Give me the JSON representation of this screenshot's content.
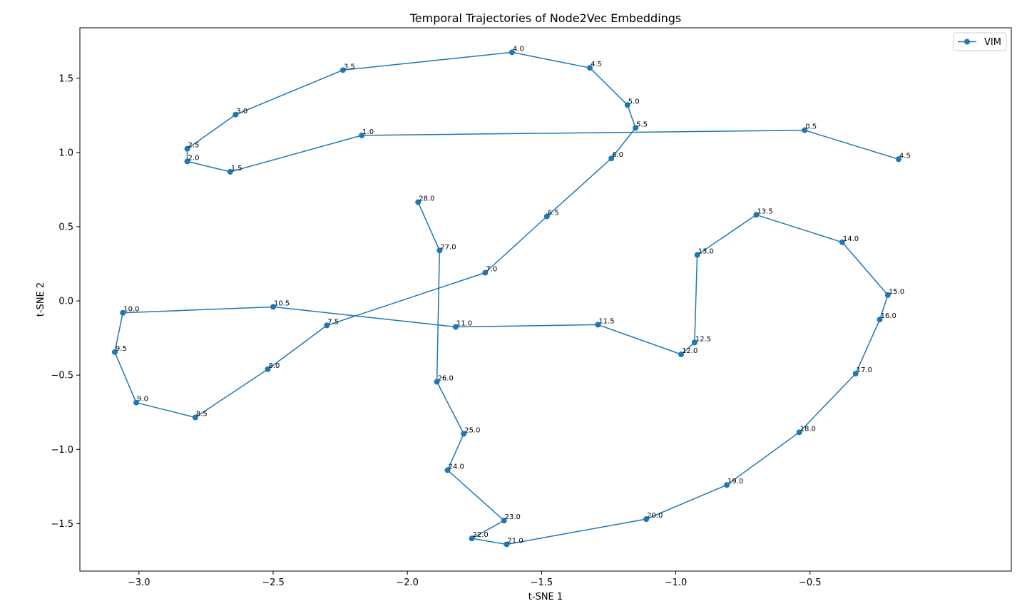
{
  "chart_data": {
    "type": "line",
    "title": "Temporal Trajectories of Node2Vec Embeddings",
    "xlabel": "t-SNE 1",
    "ylabel": "t-SNE 2",
    "xlim": [
      -3.22,
      0.25
    ],
    "ylim": [
      -1.82,
      1.84
    ],
    "xticks": [
      -3.0,
      -2.5,
      -2.0,
      -1.5,
      -1.0,
      -0.5
    ],
    "xtick_labels": [
      "−3.0",
      "−2.5",
      "−2.0",
      "−1.5",
      "−1.0",
      "−0.5"
    ],
    "yticks": [
      -1.5,
      -1.0,
      -0.5,
      0.0,
      0.5,
      1.0,
      1.5
    ],
    "ytick_labels": [
      "−1.5",
      "−1.0",
      "−0.5",
      "0.0",
      "0.5",
      "1.0",
      "1.5"
    ],
    "grid": false,
    "legend_position": "top-right",
    "color": "#1f77b4",
    "series": [
      {
        "name": "VIM",
        "points": [
          {
            "label": "4.5",
            "x": -0.17,
            "y": 0.955
          },
          {
            "label": "0.5",
            "x": -0.52,
            "y": 1.15
          },
          {
            "label": "1.0",
            "x": -2.17,
            "y": 1.115
          },
          {
            "label": "1.5",
            "x": -2.66,
            "y": 0.87
          },
          {
            "label": "2.0",
            "x": -2.82,
            "y": 0.94
          },
          {
            "label": "2.5",
            "x": -2.82,
            "y": 1.025
          },
          {
            "label": "3.0",
            "x": -2.64,
            "y": 1.255
          },
          {
            "label": "3.5",
            "x": -2.24,
            "y": 1.555
          },
          {
            "label": "4.0",
            "x": -1.61,
            "y": 1.675
          },
          {
            "label": "4.5",
            "x": -1.32,
            "y": 1.57
          },
          {
            "label": "5.0",
            "x": -1.18,
            "y": 1.32
          },
          {
            "label": "5.5",
            "x": -1.15,
            "y": 1.165
          },
          {
            "label": "6.0",
            "x": -1.24,
            "y": 0.96
          },
          {
            "label": "6.5",
            "x": -1.48,
            "y": 0.57
          },
          {
            "label": "7.0",
            "x": -1.71,
            "y": 0.19
          },
          {
            "label": "7.5",
            "x": -2.3,
            "y": -0.165
          },
          {
            "label": "8.0",
            "x": -2.52,
            "y": -0.46
          },
          {
            "label": "8.5",
            "x": -2.79,
            "y": -0.785
          },
          {
            "label": "9.0",
            "x": -3.01,
            "y": -0.685
          },
          {
            "label": "9.5",
            "x": -3.09,
            "y": -0.345
          },
          {
            "label": "10.0",
            "x": -3.06,
            "y": -0.08
          },
          {
            "label": "10.5",
            "x": -2.5,
            "y": -0.04
          },
          {
            "label": "11.0",
            "x": -1.82,
            "y": -0.175
          },
          {
            "label": "11.5",
            "x": -1.29,
            "y": -0.16
          },
          {
            "label": "12.0",
            "x": -0.98,
            "y": -0.36
          },
          {
            "label": "12.5",
            "x": -0.93,
            "y": -0.28
          },
          {
            "label": "13.0",
            "x": -0.92,
            "y": 0.31
          },
          {
            "label": "13.5",
            "x": -0.7,
            "y": 0.58
          },
          {
            "label": "14.0",
            "x": -0.38,
            "y": 0.395
          },
          {
            "label": "15.0",
            "x": -0.21,
            "y": 0.04
          },
          {
            "label": "16.0",
            "x": -0.24,
            "y": -0.125
          },
          {
            "label": "17.0",
            "x": -0.33,
            "y": -0.49
          },
          {
            "label": "18.0",
            "x": -0.54,
            "y": -0.885
          },
          {
            "label": "19.0",
            "x": -0.81,
            "y": -1.24
          },
          {
            "label": "20.0",
            "x": -1.11,
            "y": -1.47
          },
          {
            "label": "21.0",
            "x": -1.63,
            "y": -1.64
          },
          {
            "label": "22.0",
            "x": -1.76,
            "y": -1.6
          },
          {
            "label": "23.0",
            "x": -1.64,
            "y": -1.48
          },
          {
            "label": "24.0",
            "x": -1.85,
            "y": -1.14
          },
          {
            "label": "25.0",
            "x": -1.79,
            "y": -0.895
          },
          {
            "label": "26.0",
            "x": -1.89,
            "y": -0.545
          },
          {
            "label": "27.0",
            "x": -1.88,
            "y": 0.34
          },
          {
            "label": "28.0",
            "x": -1.96,
            "y": 0.665
          }
        ]
      }
    ]
  }
}
